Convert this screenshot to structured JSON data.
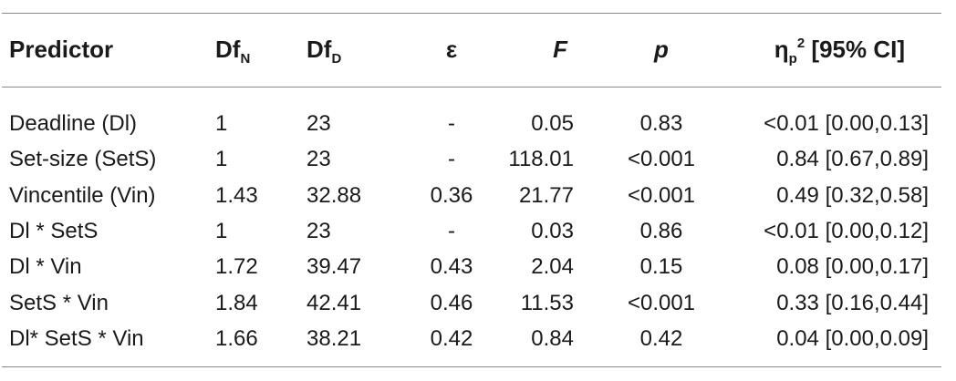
{
  "header": {
    "predictor": "Predictor",
    "dfn_main": "Df",
    "dfn_sub": "N",
    "dfd_main": "Df",
    "dfd_sub": "D",
    "epsilon": "ε",
    "f": "F",
    "p": "p",
    "eta_main": "η",
    "eta_sub": "p",
    "eta_sup": "2",
    "eta_rest": " [95% CI]"
  },
  "rows": [
    {
      "predictor": "Deadline (Dl)",
      "dfn": "1",
      "dfd": "23",
      "eps": "-",
      "f": "0.05",
      "p": "0.83",
      "eta": "<0.01 [0.00,0.13]"
    },
    {
      "predictor": "Set-size (SetS)",
      "dfn": "1",
      "dfd": "23",
      "eps": "-",
      "f": "118.01",
      "p": "<0.001",
      "eta": "0.84 [0.67,0.89]"
    },
    {
      "predictor": "Vincentile (Vin)",
      "dfn": "1.43",
      "dfd": "32.88",
      "eps": "0.36",
      "f": "21.77",
      "p": "<0.001",
      "eta": "0.49 [0.32,0.58]"
    },
    {
      "predictor": "Dl * SetS",
      "dfn": "1",
      "dfd": "23",
      "eps": "-",
      "f": "0.03",
      "p": "0.86",
      "eta": "<0.01 [0.00,0.12]"
    },
    {
      "predictor": "Dl * Vin",
      "dfn": "1.72",
      "dfd": "39.47",
      "eps": "0.43",
      "f": "2.04",
      "p": "0.15",
      "eta": "0.08 [0.00,0.17]"
    },
    {
      "predictor": "SetS * Vin",
      "dfn": "1.84",
      "dfd": "42.41",
      "eps": "0.46",
      "f": "11.53",
      "p": "<0.001",
      "eta": "0.33 [0.16,0.44]"
    },
    {
      "predictor": "Dl* SetS * Vin",
      "dfn": "1.66",
      "dfd": "38.21",
      "eps": "0.42",
      "f": "0.84",
      "p": "0.42",
      "eta": "0.04 [0.00,0.09]"
    }
  ]
}
